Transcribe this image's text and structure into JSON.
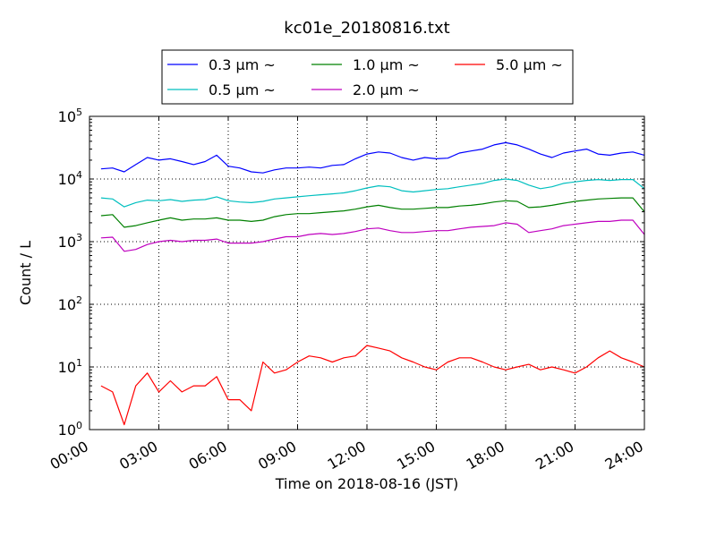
{
  "chart_data": {
    "type": "line",
    "title": "kc01e_20180816.txt",
    "xlabel": "Time on 2018-08-16 (JST)",
    "ylabel": "Count / L",
    "yscale": "log",
    "ylim": [
      1,
      100000
    ],
    "xlim": [
      "00:00",
      "24:00"
    ],
    "grid": true,
    "legend_position": "top-center",
    "x_tick_labels": [
      "00:00",
      "03:00",
      "06:00",
      "09:00",
      "12:00",
      "15:00",
      "18:00",
      "21:00",
      "24:00"
    ],
    "y_tick_labels": [
      {
        "base": "10",
        "exp": "0"
      },
      {
        "base": "10",
        "exp": "1"
      },
      {
        "base": "10",
        "exp": "2"
      },
      {
        "base": "10",
        "exp": "3"
      },
      {
        "base": "10",
        "exp": "4"
      },
      {
        "base": "10",
        "exp": "5"
      }
    ],
    "x_hours": [
      0.5,
      1.0,
      1.5,
      2.0,
      2.5,
      3.0,
      3.5,
      4.0,
      4.5,
      5.0,
      5.5,
      6.0,
      6.5,
      7.0,
      7.5,
      8.0,
      8.5,
      9.0,
      9.5,
      10.0,
      10.5,
      11.0,
      11.5,
      12.0,
      12.5,
      13.0,
      13.5,
      14.0,
      14.5,
      15.0,
      15.5,
      16.0,
      16.5,
      17.0,
      17.5,
      18.0,
      18.5,
      19.0,
      19.5,
      20.0,
      20.5,
      21.0,
      21.5,
      22.0,
      22.5,
      23.0,
      23.5,
      24.0
    ],
    "series": [
      {
        "name": "0.3 μm ~",
        "color": "#0000ff",
        "values": [
          14500,
          15000,
          13000,
          17000,
          22000,
          20000,
          21000,
          19000,
          17000,
          19000,
          24000,
          16000,
          15000,
          13000,
          12500,
          14000,
          15000,
          15000,
          15500,
          15000,
          16500,
          17000,
          21000,
          25000,
          27000,
          26000,
          22000,
          20000,
          22000,
          21000,
          21500,
          26000,
          28000,
          30000,
          35000,
          38000,
          35000,
          30000,
          25000,
          22000,
          26000,
          28000,
          30000,
          25000,
          24000,
          26000,
          27000,
          24000
        ]
      },
      {
        "name": "0.5 μm ~",
        "color": "#00bfbf",
        "values": [
          5000,
          4800,
          3600,
          4200,
          4600,
          4500,
          4700,
          4400,
          4600,
          4700,
          5200,
          4500,
          4300,
          4200,
          4400,
          4800,
          5000,
          5200,
          5400,
          5600,
          5800,
          6000,
          6500,
          7200,
          7800,
          7500,
          6500,
          6200,
          6500,
          6800,
          7000,
          7500,
          8000,
          8500,
          9500,
          10000,
          9500,
          8000,
          7000,
          7500,
          8500,
          9000,
          9500,
          9800,
          9500,
          9800,
          9800,
          7000
        ]
      },
      {
        "name": "1.0 μm ~",
        "color": "#008000",
        "values": [
          2600,
          2700,
          1700,
          1800,
          2000,
          2200,
          2400,
          2200,
          2300,
          2300,
          2400,
          2200,
          2200,
          2100,
          2200,
          2500,
          2700,
          2800,
          2800,
          2900,
          3000,
          3100,
          3300,
          3600,
          3800,
          3500,
          3300,
          3300,
          3400,
          3500,
          3500,
          3700,
          3800,
          4000,
          4300,
          4500,
          4400,
          3500,
          3600,
          3800,
          4100,
          4400,
          4600,
          4800,
          4900,
          5000,
          5000,
          3000
        ]
      },
      {
        "name": "2.0 μm ~",
        "color": "#bf00bf",
        "values": [
          1150,
          1180,
          700,
          750,
          900,
          1000,
          1050,
          1000,
          1050,
          1050,
          1100,
          950,
          950,
          950,
          1000,
          1100,
          1200,
          1200,
          1300,
          1350,
          1300,
          1350,
          1450,
          1600,
          1650,
          1500,
          1400,
          1400,
          1450,
          1500,
          1500,
          1600,
          1700,
          1750,
          1800,
          2000,
          1900,
          1400,
          1500,
          1600,
          1800,
          1900,
          2000,
          2100,
          2100,
          2200,
          2200,
          1300
        ]
      },
      {
        "name": "5.0 μm ~",
        "color": "#ff0000",
        "values": [
          5,
          4,
          1.2,
          5,
          8,
          4,
          6,
          4,
          5,
          5,
          7,
          3,
          3,
          2,
          12,
          8,
          9,
          12,
          15,
          14,
          12,
          14,
          15,
          22,
          20,
          18,
          14,
          12,
          10,
          9,
          12,
          14,
          14,
          12,
          10,
          9,
          10,
          11,
          9,
          10,
          9,
          8,
          10,
          14,
          18,
          14,
          12,
          10
        ]
      }
    ]
  }
}
